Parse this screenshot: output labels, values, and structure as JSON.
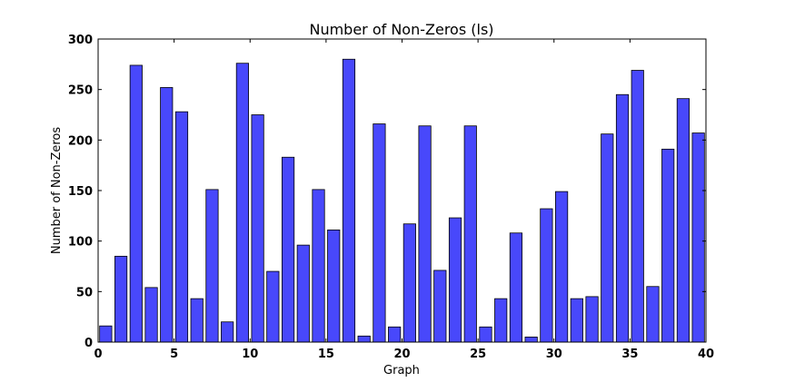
{
  "chart_data": {
    "type": "bar",
    "title": "Number of Non-Zeros (ls)",
    "xlabel": "Graph",
    "ylabel": "Number of Non-Zeros",
    "xlim": [
      0,
      40
    ],
    "ylim": [
      0,
      300
    ],
    "xticks": [
      0,
      5,
      10,
      15,
      20,
      25,
      30,
      35,
      40
    ],
    "yticks": [
      0,
      50,
      100,
      150,
      200,
      250,
      300
    ],
    "bar_color": "#4848fb",
    "grid": false,
    "categories": [
      0,
      1,
      2,
      3,
      4,
      5,
      6,
      7,
      8,
      9,
      10,
      11,
      12,
      13,
      14,
      15,
      16,
      17,
      18,
      19,
      20,
      21,
      22,
      23,
      24,
      25,
      26,
      27,
      28,
      29,
      30,
      31,
      32,
      33,
      34,
      35,
      36,
      37,
      38,
      39
    ],
    "values": [
      16,
      85,
      274,
      54,
      252,
      228,
      43,
      151,
      20,
      276,
      225,
      70,
      183,
      96,
      151,
      111,
      280,
      6,
      216,
      15,
      117,
      214,
      71,
      123,
      214,
      15,
      43,
      108,
      5,
      132,
      149,
      43,
      45,
      206,
      245,
      269,
      55,
      191,
      241,
      207
    ]
  }
}
